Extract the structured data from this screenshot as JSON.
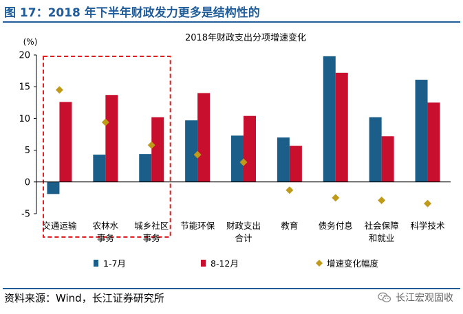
{
  "header": {
    "figure_title": "图 17：2018 年下半年财政发力更多是结构性的"
  },
  "footer": {
    "source": "资料来源：Wind，长江证券研究所",
    "brand": "长江宏观固收",
    "brand_icon": "wechat-icon"
  },
  "colors": {
    "title_blue": "#1f5c99",
    "series_1_7": "#1b5e8a",
    "series_8_12": "#c8102e",
    "marker_change": "#c09a1a",
    "highlight_box": "#e02020"
  },
  "chart_data": {
    "type": "bar",
    "title": "2018年财政支出分项增速变化",
    "ylabel": "(%)",
    "ylim": [
      -5,
      20
    ],
    "yticks": [
      -5,
      0,
      5,
      10,
      15,
      20
    ],
    "categories": [
      [
        "交通运输"
      ],
      [
        "农林水",
        "事务"
      ],
      [
        "城乡社区",
        "事务"
      ],
      [
        "节能环保"
      ],
      [
        "财政支出",
        "合计"
      ],
      [
        "教育"
      ],
      [
        "债务付息"
      ],
      [
        "社会保障",
        "和就业"
      ],
      [
        "科学技术"
      ]
    ],
    "series": [
      {
        "name": "1-7月",
        "kind": "bar",
        "values": [
          -1.9,
          4.3,
          4.4,
          9.7,
          7.3,
          7.0,
          19.8,
          10.2,
          16.1
        ]
      },
      {
        "name": "8-12月",
        "kind": "bar",
        "values": [
          12.6,
          13.7,
          10.2,
          14.0,
          10.4,
          5.7,
          17.2,
          7.2,
          12.5
        ]
      },
      {
        "name": "增速变化幅度",
        "kind": "marker",
        "values": [
          14.5,
          9.4,
          5.8,
          4.3,
          3.1,
          -1.3,
          -2.5,
          -2.9,
          -3.4
        ]
      }
    ],
    "highlight": {
      "from_category": 0,
      "to_category": 2,
      "style": "red-dashed-box"
    },
    "legend": {
      "position": "bottom"
    }
  }
}
